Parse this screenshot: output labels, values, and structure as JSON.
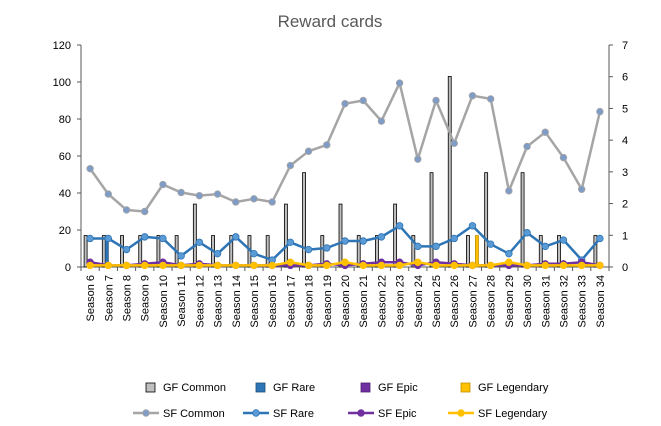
{
  "chart_data": {
    "type": "bar",
    "title": "Reward cards",
    "xlabel": "",
    "ylabel": "",
    "ylim": [
      0,
      120
    ],
    "y2lim": [
      0,
      7
    ],
    "yticks": [
      "0",
      "20",
      "40",
      "60",
      "80",
      "100",
      "120"
    ],
    "y2ticks": [
      "0",
      "1",
      "2",
      "3",
      "4",
      "5",
      "6",
      "7"
    ],
    "grid": false,
    "legend": "bottom",
    "categories": [
      "Season 6",
      "Season 7",
      "Season 8",
      "Season 9",
      "Season 10",
      "Season 11",
      "Season 12",
      "Season 13",
      "Season 14",
      "Season 15",
      "Season 16",
      "Season 17",
      "Season 18",
      "Season 19",
      "Season 20",
      "Season 21",
      "Season 22",
      "Season 23",
      "Season 24",
      "Season 25",
      "Season 26",
      "Season 27",
      "Season 28",
      "Season 29",
      "Season 30",
      "Season 31",
      "Season 32",
      "Season 33",
      "Season 34"
    ],
    "series": [
      {
        "name": "GF Common",
        "kind": "bar",
        "axis": "left",
        "color": "#bfbfbf",
        "stroke": "#000000",
        "values": [
          17,
          17,
          17,
          17,
          17,
          17,
          34,
          17,
          17,
          17,
          17,
          34,
          51,
          17,
          34,
          17,
          17,
          34,
          17,
          51,
          103,
          17,
          51,
          0,
          51,
          17,
          17,
          0,
          17
        ]
      },
      {
        "name": "GF Rare",
        "kind": "bar",
        "axis": "left",
        "color": "#2e75b6",
        "stroke": "#1f4e79",
        "values": [
          0,
          17,
          0,
          0,
          0,
          0,
          0,
          0,
          0,
          0,
          0,
          0,
          0,
          0,
          0,
          0,
          0,
          0,
          0,
          0,
          0,
          0,
          0,
          0,
          0,
          0,
          0,
          0,
          0
        ]
      },
      {
        "name": "GF Epic",
        "kind": "bar",
        "axis": "left",
        "color": "#7030a0",
        "stroke": "#4b2070",
        "values": [
          0,
          0,
          0,
          0,
          0,
          0,
          0,
          0,
          0,
          0,
          0,
          0,
          0,
          0,
          0,
          0,
          0,
          0,
          0,
          0,
          0,
          0,
          0,
          0,
          0,
          0,
          0,
          0,
          0
        ]
      },
      {
        "name": "GF Legendary",
        "kind": "bar",
        "axis": "left",
        "color": "#ffc000",
        "stroke": "#bf9000",
        "values": [
          0,
          0,
          0,
          0,
          0,
          0,
          0,
          0,
          0,
          0,
          0,
          0,
          0,
          0,
          0,
          0,
          0,
          0,
          0,
          0,
          0,
          17,
          0,
          0,
          0,
          0,
          0,
          0,
          0
        ]
      },
      {
        "name": "SF Common",
        "kind": "line",
        "axis": "right",
        "color": "#a5a5a5",
        "marker": "#7f9cc7",
        "values": [
          3.1,
          2.3,
          1.8,
          1.75,
          2.6,
          2.35,
          2.25,
          2.3,
          2.05,
          2.15,
          2.05,
          3.2,
          3.65,
          3.85,
          5.15,
          5.25,
          4.6,
          5.8,
          3.4,
          5.25,
          3.9,
          5.4,
          5.3,
          2.4,
          3.8,
          4.25,
          3.45,
          2.45,
          4.9
        ]
      },
      {
        "name": "SF Rare",
        "kind": "line",
        "axis": "right",
        "color": "#2e75b6",
        "marker": "#5b9bd5",
        "values": [
          0.9,
          0.9,
          0.55,
          0.95,
          0.9,
          0.35,
          0.78,
          0.42,
          0.95,
          0.42,
          0.22,
          0.78,
          0.55,
          0.6,
          0.82,
          0.82,
          0.95,
          1.3,
          0.65,
          0.65,
          0.9,
          1.3,
          0.72,
          0.42,
          1.08,
          0.65,
          0.85,
          0.22,
          0.9
        ]
      },
      {
        "name": "SF Epic",
        "kind": "line",
        "axis": "right",
        "color": "#7030a0",
        "marker": "#7030a0",
        "values": [
          0.15,
          0.05,
          0.05,
          0.1,
          0.15,
          0.05,
          0.1,
          0.05,
          0.05,
          0.05,
          0.05,
          0.05,
          0.05,
          0.1,
          0.05,
          0.1,
          0.15,
          0.15,
          0.05,
          0.15,
          0.1,
          0.05,
          0.05,
          0.05,
          0.05,
          0.1,
          0.1,
          0.15,
          0.05
        ]
      },
      {
        "name": "SF Legendary",
        "kind": "line",
        "axis": "right",
        "color": "#ffc000",
        "marker": "#ffc000",
        "values": [
          0.05,
          0.05,
          0.05,
          0.05,
          0.05,
          0.05,
          0.05,
          0.05,
          0.05,
          0.05,
          0.05,
          0.15,
          0.05,
          0.05,
          0.15,
          0.05,
          0.05,
          0.05,
          0.15,
          0.05,
          0.05,
          0.05,
          0.05,
          0.15,
          0.05,
          0.05,
          0.05,
          0.05,
          0.05
        ]
      }
    ]
  }
}
